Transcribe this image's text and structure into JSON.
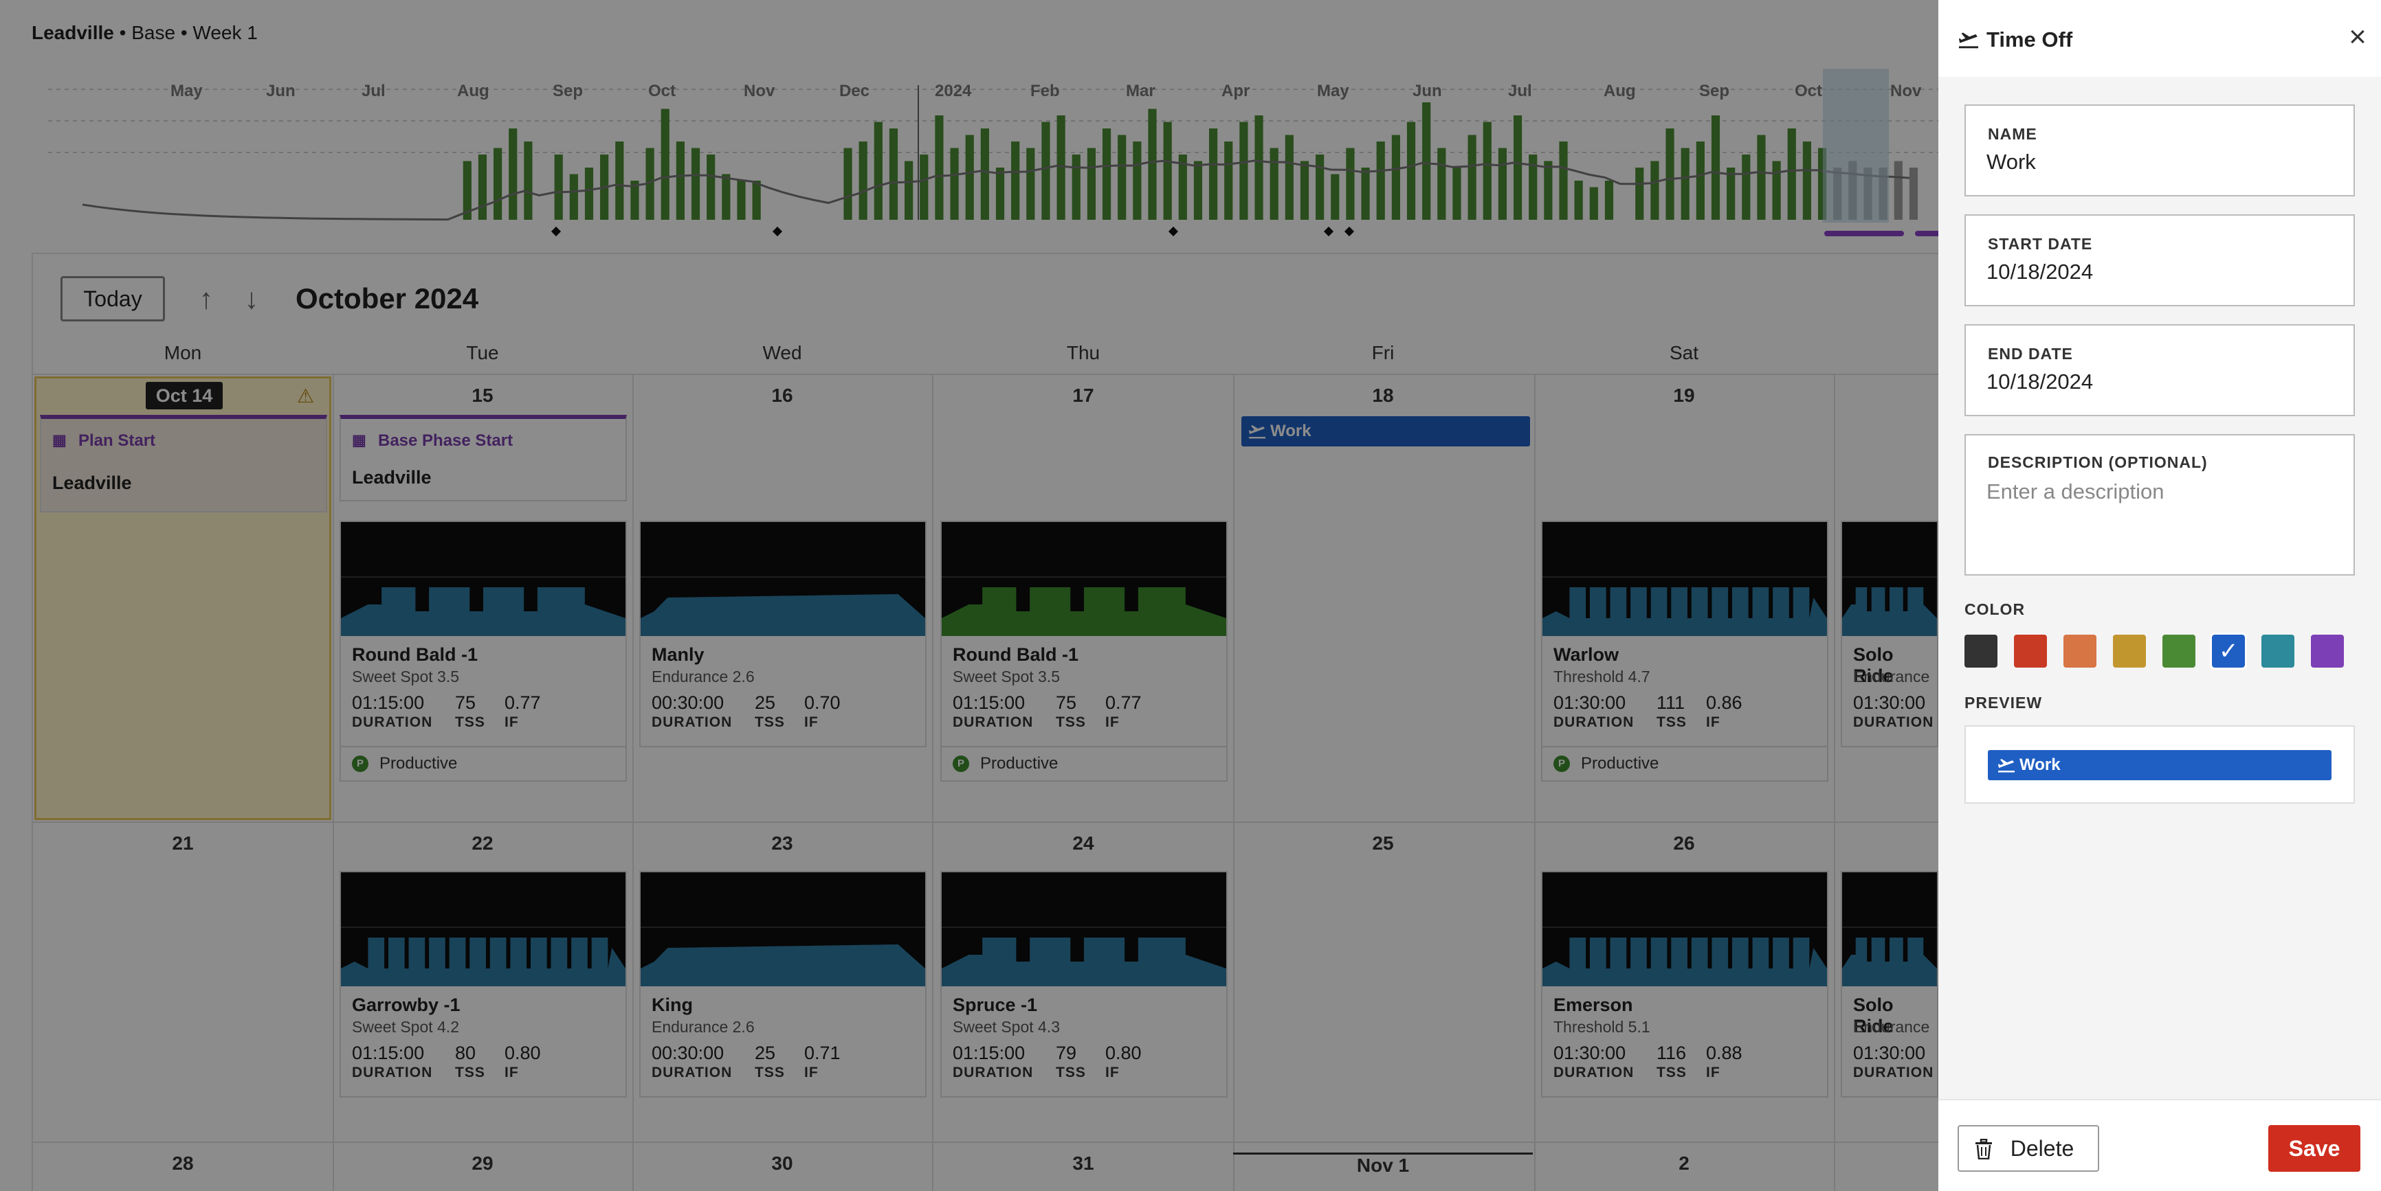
{
  "breadcrumb": {
    "plan": "Leadville",
    "sep1": "•",
    "phase": "Base",
    "sep2": "•",
    "week": "Week 1"
  },
  "history": {
    "months": [
      "May",
      "Jun",
      "Jul",
      "Aug",
      "Sep",
      "Oct",
      "Nov",
      "Dec",
      "2024",
      "Feb",
      "Mar",
      "Apr",
      "May",
      "Jun",
      "Jul",
      "Aug",
      "Sep",
      "Oct",
      "Nov"
    ],
    "bar_color": "#4c8c33",
    "future_bar_color": "#a0a0a0",
    "tss_values": [
      0,
      0,
      0,
      0,
      0,
      0,
      0,
      0,
      0,
      0,
      0,
      0,
      0,
      0,
      0,
      0,
      0,
      0,
      0,
      0,
      0,
      0,
      0,
      0,
      0,
      45,
      50,
      55,
      70,
      60,
      0,
      50,
      35,
      40,
      50,
      60,
      30,
      55,
      85,
      60,
      55,
      50,
      35,
      30,
      30,
      0,
      0,
      0,
      0,
      0,
      55,
      60,
      75,
      70,
      45,
      50,
      80,
      55,
      65,
      70,
      40,
      60,
      55,
      75,
      80,
      50,
      55,
      70,
      65,
      60,
      85,
      75,
      50,
      45,
      70,
      60,
      75,
      80,
      55,
      65,
      45,
      50,
      35,
      55,
      40,
      60,
      65,
      75,
      90,
      55,
      40,
      65,
      75,
      55,
      80,
      50,
      45,
      60,
      30,
      25,
      30,
      0,
      40,
      45,
      70,
      55,
      60,
      80,
      40,
      50,
      65,
      45,
      70,
      60,
      55,
      40,
      45,
      40,
      40,
      45,
      40
    ]
  },
  "toolbar": {
    "today_label": "Today",
    "up_arrow": "↑",
    "down_arrow": "↓",
    "month_title": "October 2024"
  },
  "weekdays": [
    "Mon",
    "Tue",
    "Wed",
    "Thu",
    "Fri",
    "Sat"
  ],
  "week1": {
    "today_badge": "Oct 14",
    "warning_icon": "⚠",
    "days": [
      "15",
      "16",
      "17",
      "18",
      "19"
    ],
    "events": [
      {
        "type": "Plan Start",
        "name": "Leadville"
      },
      {
        "type": "Base Phase Start",
        "name": "Leadville"
      }
    ],
    "time_off_label": "Work",
    "workouts": [
      {
        "name": "Round Bald -1",
        "sub": "Sweet Spot 3.5",
        "duration": "01:15:00",
        "tss": "75",
        "if": "0.77",
        "tag": "Productive",
        "color": "#2e7aa3"
      },
      {
        "name": "Manly",
        "sub": "Endurance 2.6",
        "duration": "00:30:00",
        "tss": "25",
        "if": "0.70",
        "tag": "",
        "color": "#2e7aa3"
      },
      {
        "name": "Round Bald -1",
        "sub": "Sweet Spot 3.5",
        "duration": "01:15:00",
        "tss": "75",
        "if": "0.77",
        "tag": "Productive",
        "color": "#3f8c2f"
      },
      {
        "name": "Warlow",
        "sub": "Threshold 4.7",
        "duration": "01:30:00",
        "tss": "111",
        "if": "0.86",
        "tag": "Productive",
        "color": "#2e7aa3"
      },
      {
        "name": "Solo Ride",
        "sub": "Endurance",
        "duration": "01:30:00",
        "tss": "",
        "if": "",
        "tag": "",
        "color": "#2e7aa3"
      }
    ]
  },
  "week2": {
    "days": [
      "21",
      "22",
      "23",
      "24",
      "25",
      "26"
    ],
    "workouts": [
      {
        "name": "Garrowby -1",
        "sub": "Sweet Spot 4.2",
        "duration": "01:15:00",
        "tss": "80",
        "if": "0.80",
        "color": "#2e7aa3"
      },
      {
        "name": "King",
        "sub": "Endurance 2.6",
        "duration": "00:30:00",
        "tss": "25",
        "if": "0.71",
        "color": "#2e7aa3"
      },
      {
        "name": "Spruce -1",
        "sub": "Sweet Spot 4.3",
        "duration": "01:15:00",
        "tss": "79",
        "if": "0.80",
        "color": "#2e7aa3"
      },
      {
        "name": "Emerson",
        "sub": "Threshold 5.1",
        "duration": "01:30:00",
        "tss": "116",
        "if": "0.88",
        "color": "#2e7aa3"
      },
      {
        "name": "Solo Ride",
        "sub": "Endurance",
        "duration": "01:30:00",
        "tss": "",
        "if": "",
        "color": "#2e7aa3"
      }
    ]
  },
  "week3": {
    "days": [
      "28",
      "29",
      "30",
      "31",
      "Nov 1",
      "2"
    ]
  },
  "labels": {
    "duration": "DURATION",
    "tss": "TSS",
    "if": "IF",
    "p": "P"
  },
  "panel": {
    "title": "Time Off",
    "close_icon": "×",
    "name_label": "NAME",
    "name_value": "Work",
    "start_label": "START DATE",
    "start_value": "10/18/2024",
    "end_label": "END DATE",
    "end_value": "10/18/2024",
    "desc_label": "DESCRIPTION (OPTIONAL)",
    "desc_placeholder": "Enter a description",
    "color_label": "COLOR",
    "colors": [
      "#333333",
      "#c93a24",
      "#d87545",
      "#c2962e",
      "#4b8a35",
      "#1f5fc4",
      "#2c8a9a",
      "#7d3fb5"
    ],
    "selected_color_index": 5,
    "check_icon": "✓",
    "preview_label": "PREVIEW",
    "preview_text": "Work",
    "delete_label": "Delete",
    "save_label": "Save"
  }
}
